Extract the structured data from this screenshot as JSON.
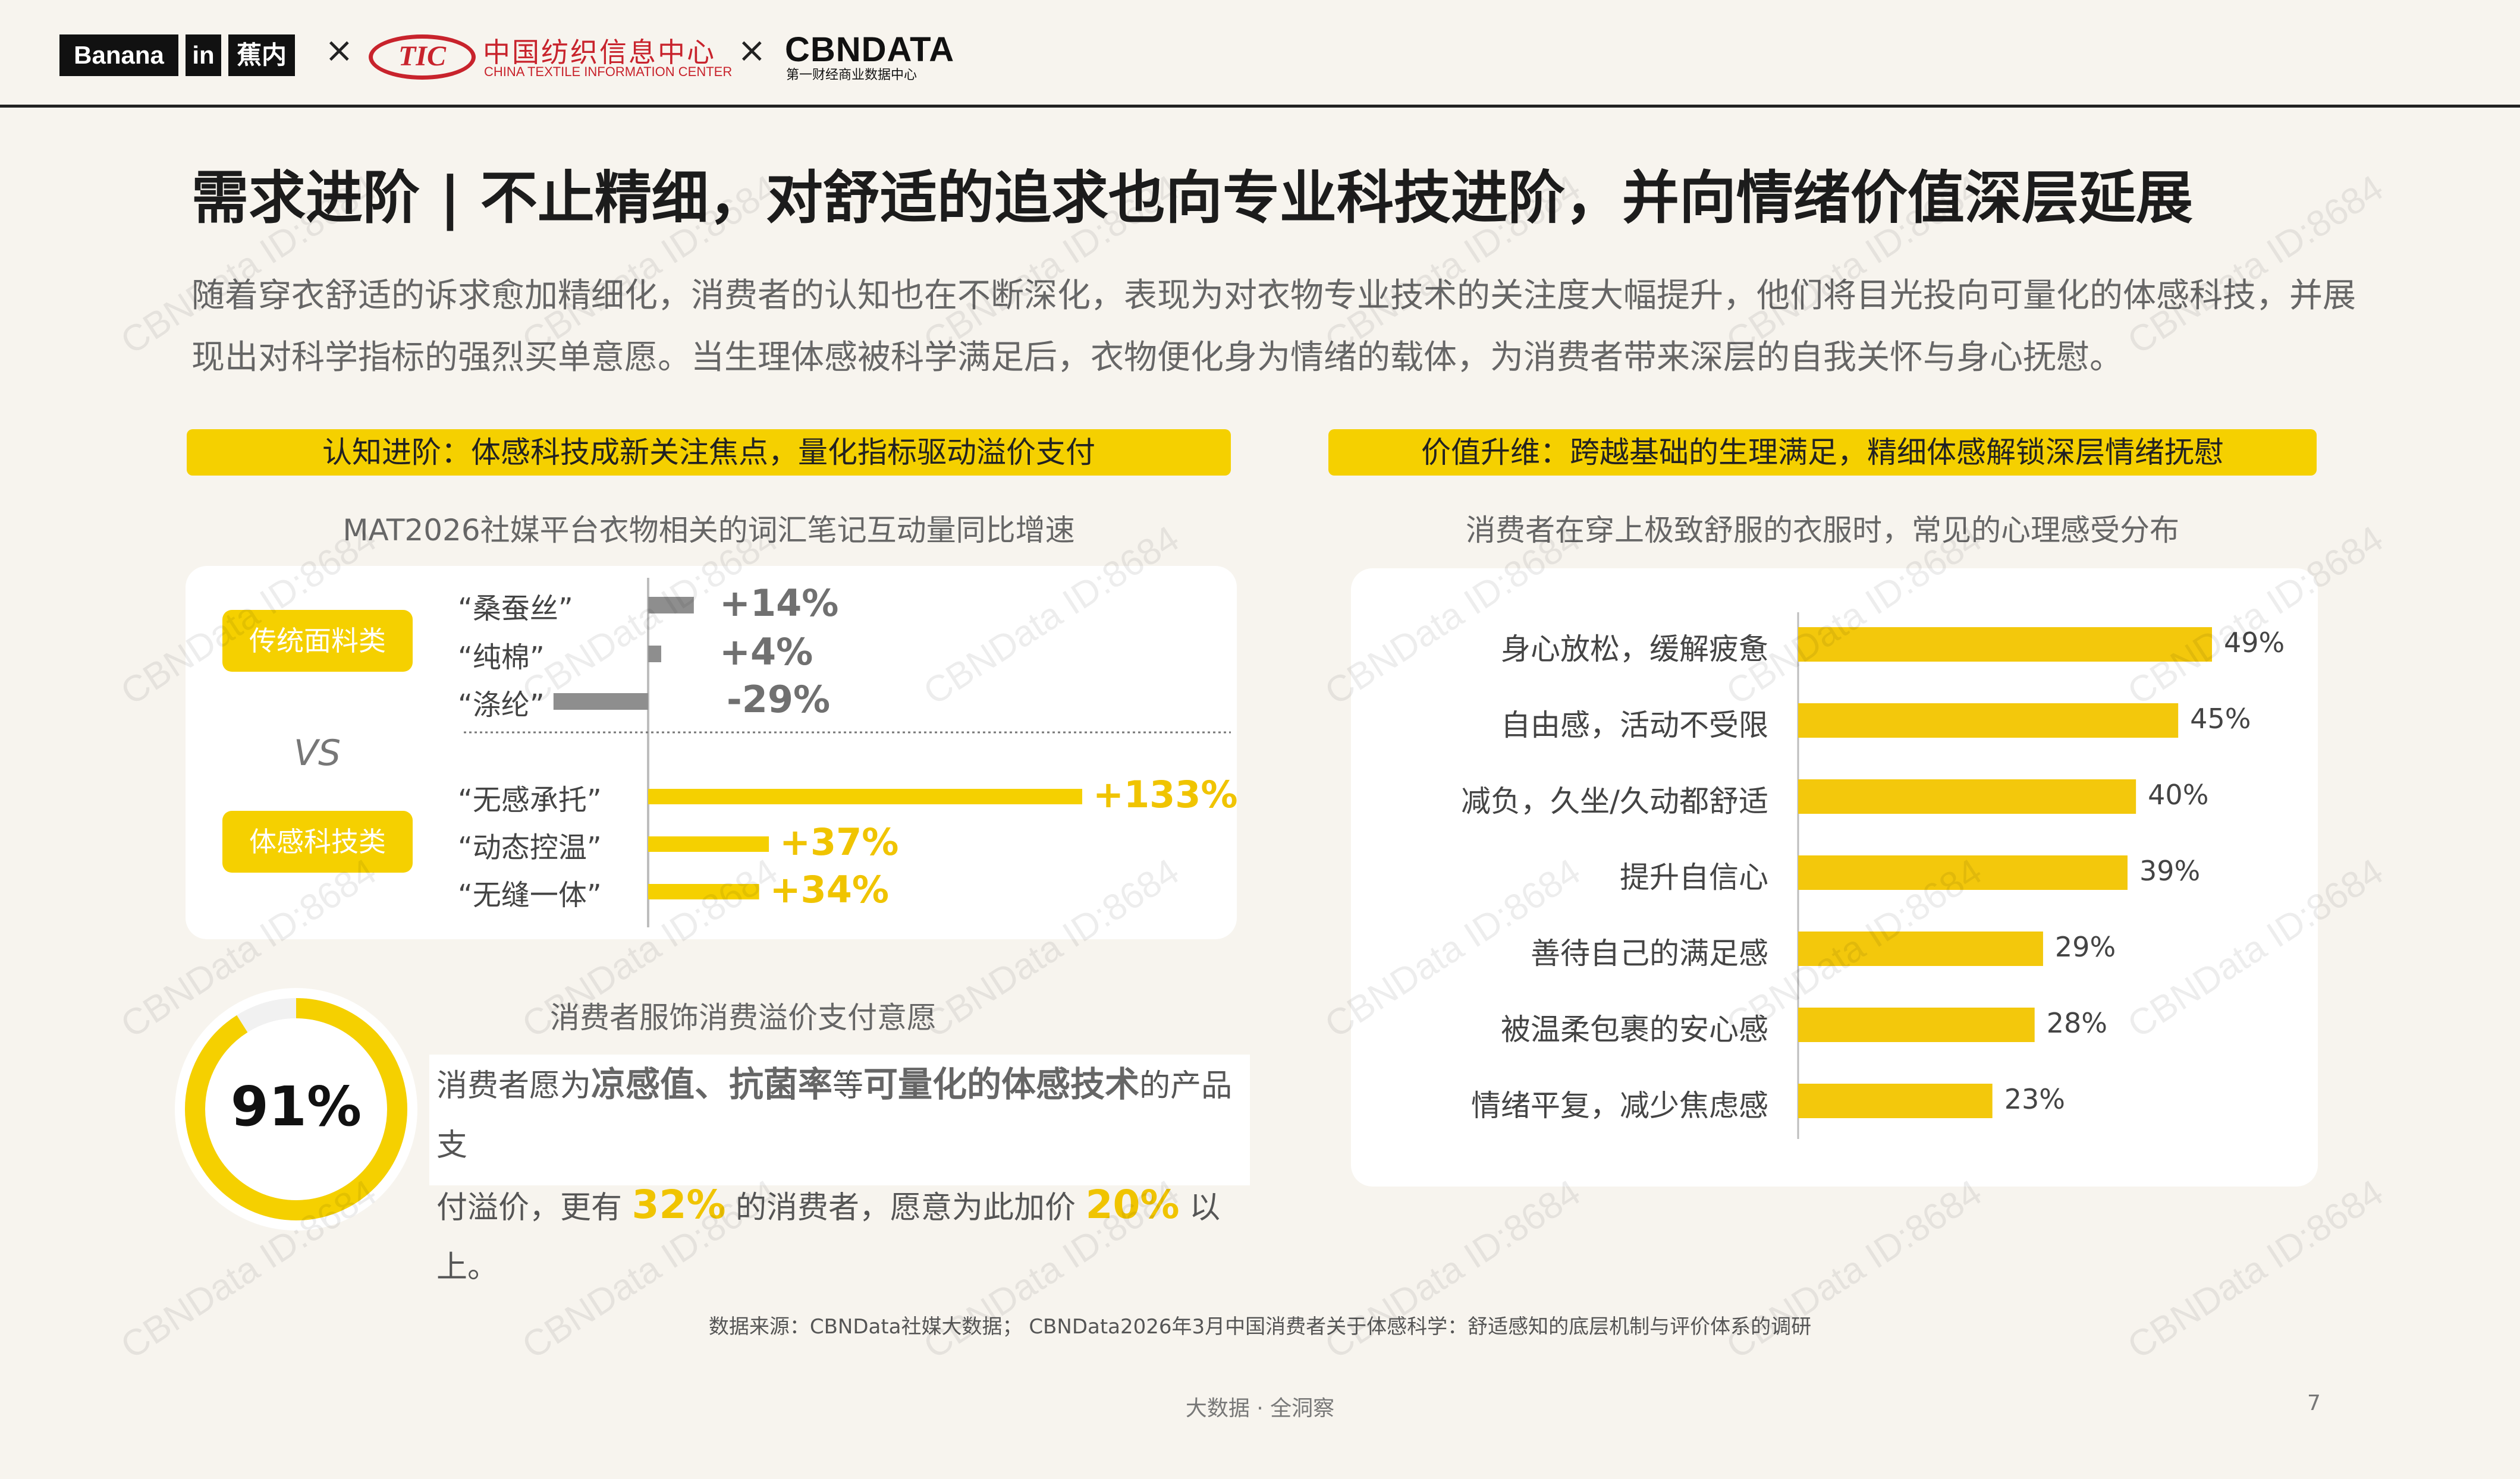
{
  "header": {
    "banana_1": "Banana",
    "banana_2": "in",
    "banana_3": "蕉内",
    "times": "×",
    "ctic_mark": "TIC",
    "ctic_cn": "中国纺织信息中心",
    "ctic_en": "CHINA TEXTILE INFORMATION CENTER",
    "cbn_logo": "CBNDATA",
    "cbn_sub": "第一财经商业数据中心"
  },
  "title": "需求进阶 | 不止精细，对舒适的追求也向专业科技进阶，并向情绪价值深层延展",
  "intro": "随着穿衣舒适的诉求愈加精细化，消费者的认知也在不断深化，表现为对衣物专业技术的关注度大幅提升，他们将目光投向可量化的体感科技，并展现出对科学指标的强烈买单意愿。当生理体感被科学满足后，衣物便化身为情绪的载体，为消费者带来深层的自我关怀与身心抚慰。",
  "left_header": "认知进阶：体感科技成新关注焦点，量化指标驱动溢价支付",
  "right_header": "价值升维：跨越基础的生理满足，精细体感解锁深层情绪抚慰",
  "chart_data": [
    {
      "type": "bar",
      "title": "MAT2026社媒平台衣物相关的词汇笔记互动量同比增速",
      "groups": [
        {
          "name": "传统面料类",
          "categories": [
            "“桑蚕丝”",
            "“纯棉”",
            "“涤纶”"
          ],
          "values": [
            14,
            4,
            -29
          ],
          "labels": [
            "+14%",
            "+4%",
            "-29%"
          ]
        },
        {
          "name": "体感科技类",
          "categories": [
            "“无感承托”",
            "“动态控温”",
            "“无缝一体”"
          ],
          "values": [
            133,
            37,
            34
          ],
          "labels": [
            "+133%",
            "+37%",
            "+34%"
          ]
        }
      ],
      "divider_label": "VS",
      "colors": {
        "traditional": "#8e8e8e",
        "tech": "#f5d000"
      }
    },
    {
      "type": "bar",
      "title": "消费者在穿上极致舒服的衣服时，常见的心理感受分布",
      "categories": [
        "身心放松，缓解疲惫",
        "自由感，活动不受限",
        "减负，久坐/久动都舒适",
        "提升自信心",
        "善待自己的满足感",
        "被温柔包裹的安心感",
        "情绪平复，减少焦虑感"
      ],
      "values": [
        49,
        45,
        40,
        39,
        29,
        28,
        23
      ],
      "labels": [
        "49%",
        "45%",
        "40%",
        "39%",
        "29%",
        "28%",
        "23%"
      ],
      "color": "#f5d000"
    },
    {
      "type": "pie",
      "title": "消费者服饰消费溢价支付意愿",
      "values": [
        91
      ],
      "labels": [
        "91%"
      ],
      "color": "#f5d000"
    }
  ],
  "premium": {
    "p1": "消费者愿为",
    "b1": "凉感值、抗菌率",
    "p2": "等",
    "b2": "可量化的体感技术",
    "p3": "的产品支",
    "p4": "付溢价，更有 ",
    "y1": "32%",
    "p5": " 的消费者，愿意为此加价 ",
    "y2": "20%",
    "p6": " 以上。"
  },
  "source": "数据来源：CBNData社媒大数据； CBNData2026年3月中国消费者关于体感科学：舒适感知的底层机制与评价体系的调研",
  "footer": "大数据 · 全洞察",
  "page_number": "7",
  "watermark": "CBNData ID:8684"
}
